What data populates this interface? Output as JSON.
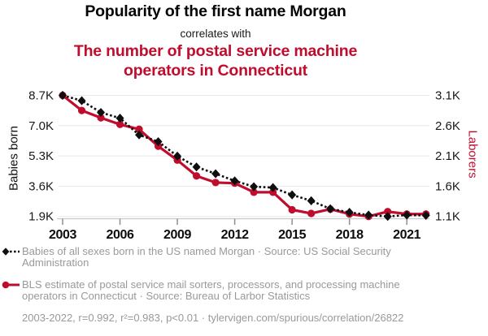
{
  "header": {
    "title": "Popularity of the first name Morgan",
    "connector": "correlates with",
    "subtitle": "The number of postal service machine operators in Connecticut"
  },
  "chart_data": {
    "type": "line",
    "title": "Popularity of the first name Morgan correlates with The number of postal service machine operators in Connecticut",
    "grid": true,
    "grid_color": "#e8e8e8",
    "x": [
      2003,
      2004,
      2005,
      2006,
      2007,
      2008,
      2009,
      2010,
      2011,
      2012,
      2013,
      2014,
      2015,
      2016,
      2017,
      2018,
      2019,
      2020,
      2021,
      2022
    ],
    "x_ticks": [
      2003,
      2006,
      2009,
      2012,
      2015,
      2018,
      2021
    ],
    "left_axis": {
      "label": "Babies born",
      "color": "#191919",
      "min": 1900,
      "max": 8700,
      "ticks": [
        {
          "value": 8700,
          "label": "8.7K"
        },
        {
          "value": 7000,
          "label": "7.0K"
        },
        {
          "value": 5300,
          "label": "5.3K"
        },
        {
          "value": 3600,
          "label": "3.6K"
        },
        {
          "value": 1900,
          "label": "1.9K"
        }
      ]
    },
    "right_axis": {
      "label": "Laborers",
      "color": "#c00d2e",
      "min": 1100,
      "max": 3100,
      "ticks": [
        {
          "value": 3100,
          "label": "3.1K"
        },
        {
          "value": 2600,
          "label": "2.6K"
        },
        {
          "value": 2100,
          "label": "2.1K"
        },
        {
          "value": 1600,
          "label": "1.6K"
        },
        {
          "value": 1100,
          "label": "1.1K"
        }
      ]
    },
    "series": [
      {
        "name": "Babies of all sexes born in the US named Morgan",
        "axis": "left",
        "color": "#0f0f0f",
        "line_style": "dashed",
        "marker": "diamond",
        "values": [
          8700,
          8400,
          7740,
          7420,
          6480,
          6100,
          5290,
          4680,
          4300,
          3900,
          3570,
          3520,
          3110,
          2780,
          2330,
          2130,
          1980,
          1900,
          1980,
          1960
        ]
      },
      {
        "name": "BLS estimate of postal service machine operators in Connecticut",
        "axis": "right",
        "color": "#c00d2e",
        "line_style": "solid",
        "marker": "circle",
        "values": [
          3100,
          2850,
          2730,
          2620,
          2540,
          2260,
          2030,
          1770,
          1660,
          1650,
          1500,
          1500,
          1210,
          1150,
          1220,
          1140,
          1100,
          1180,
          1140,
          1140
        ]
      }
    ],
    "legend_position": "bottom"
  },
  "legend": {
    "items": [
      {
        "marker": "diamond-dashed",
        "color": "#0f0f0f",
        "label": "Babies of all sexes born in the US named Morgan · Source: US Social Security Administration"
      },
      {
        "marker": "circle-solid",
        "color": "#c00d2e",
        "label": "BLS estimate of postal service mail sorters, processors, and processing machine operators in Connecticut · Source: Bureau of Larbor Statistics"
      }
    ],
    "footnote": "2003-2022, r=0.992, r²=0.983, p<0.01 · tylervigen.com/spurious/correlation/26822"
  },
  "colors": {
    "red_accent": "#c00d2e",
    "legend_text": "#999999",
    "grid": "#e8e8e8",
    "axis_line": "#c9c9c9"
  }
}
